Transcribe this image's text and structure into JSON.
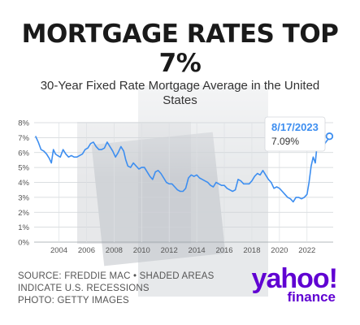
{
  "header": {
    "title_line1": "MORTGAGE RATES TOP",
    "title_line2": "7%",
    "subtitle_line1": "30-Year Fixed Rate Mortgage Average in the United",
    "subtitle_line2": "States"
  },
  "footer": {
    "source_line1": "SOURCE: FREDDIE MAC • SHADED AREAS",
    "source_line2": "INDICATE U.S. RECESSIONS",
    "source_line3": "PHOTO: GETTY IMAGES"
  },
  "brand": {
    "logo_text": "yahoo!",
    "sub_text": "finance",
    "color": "#6001d2"
  },
  "chart_data": {
    "type": "line",
    "xlim": [
      2002.2,
      2023.9
    ],
    "ylim": [
      0,
      8
    ],
    "x_ticks": [
      2004,
      2006,
      2008,
      2010,
      2012,
      2014,
      2016,
      2018,
      2020,
      2022
    ],
    "x_tick_labels": [
      "2004",
      "2006",
      "2008",
      "2010",
      "2012",
      "2014",
      "2016",
      "2018",
      "2020",
      "2022"
    ],
    "y_ticks": [
      0,
      1,
      2,
      3,
      4,
      5,
      6,
      7,
      8
    ],
    "y_tick_labels": [
      "0%",
      "1%",
      "2%",
      "3%",
      "4%",
      "5%",
      "6%",
      "7%",
      "8%"
    ],
    "grid": true,
    "line_color": "#3d8ef0",
    "series": [
      {
        "x": [
          2002.3,
          2002.5,
          2002.7,
          2002.9,
          2003.1,
          2003.3,
          2003.45,
          2003.6,
          2003.75,
          2003.9,
          2004.1,
          2004.3,
          2004.5,
          2004.7,
          2004.9,
          2005.1,
          2005.3,
          2005.5,
          2005.7,
          2005.9,
          2006.1,
          2006.3,
          2006.5,
          2006.7,
          2006.9,
          2007.1,
          2007.3,
          2007.5,
          2007.7,
          2007.9,
          2008.1,
          2008.3,
          2008.5,
          2008.7,
          2008.85,
          2009.0,
          2009.2,
          2009.4,
          2009.6,
          2009.8,
          2010.0,
          2010.2,
          2010.4,
          2010.6,
          2010.8,
          2011.0,
          2011.2,
          2011.4,
          2011.6,
          2011.8,
          2012.0,
          2012.2,
          2012.4,
          2012.6,
          2012.8,
          2013.0,
          2013.2,
          2013.4,
          2013.6,
          2013.8,
          2014.0,
          2014.2,
          2014.4,
          2014.6,
          2014.8,
          2015.0,
          2015.2,
          2015.4,
          2015.6,
          2015.8,
          2016.0,
          2016.2,
          2016.4,
          2016.6,
          2016.8,
          2017.0,
          2017.2,
          2017.4,
          2017.6,
          2017.8,
          2018.0,
          2018.2,
          2018.4,
          2018.6,
          2018.8,
          2019.0,
          2019.2,
          2019.4,
          2019.6,
          2019.8,
          2020.0,
          2020.2,
          2020.4,
          2020.6,
          2020.8,
          2021.0,
          2021.2,
          2021.4,
          2021.6,
          2021.8,
          2022.0,
          2022.15,
          2022.3,
          2022.45,
          2022.6,
          2022.75,
          2022.85,
          2023.0,
          2023.15,
          2023.3,
          2023.45,
          2023.55,
          2023.63
        ],
        "y": [
          7.1,
          6.7,
          6.2,
          6.1,
          5.9,
          5.6,
          5.3,
          6.2,
          5.9,
          5.8,
          5.7,
          6.2,
          5.9,
          5.7,
          5.8,
          5.7,
          5.7,
          5.8,
          5.9,
          6.2,
          6.3,
          6.6,
          6.7,
          6.4,
          6.2,
          6.2,
          6.3,
          6.7,
          6.4,
          6.1,
          5.7,
          6.0,
          6.4,
          6.1,
          5.5,
          5.1,
          5.0,
          5.3,
          5.1,
          4.9,
          5.0,
          5.0,
          4.7,
          4.4,
          4.2,
          4.7,
          4.8,
          4.6,
          4.3,
          4.0,
          3.9,
          3.9,
          3.7,
          3.5,
          3.4,
          3.4,
          3.6,
          4.3,
          4.5,
          4.4,
          4.5,
          4.3,
          4.2,
          4.1,
          4.0,
          3.8,
          3.7,
          4.0,
          3.9,
          3.8,
          3.8,
          3.6,
          3.5,
          3.4,
          3.5,
          4.2,
          4.1,
          3.9,
          3.9,
          3.9,
          4.1,
          4.4,
          4.6,
          4.5,
          4.8,
          4.5,
          4.2,
          4.0,
          3.6,
          3.7,
          3.6,
          3.4,
          3.2,
          3.0,
          2.9,
          2.7,
          3.0,
          3.0,
          2.9,
          3.0,
          3.2,
          4.0,
          5.1,
          5.7,
          5.3,
          6.7,
          7.0,
          6.4,
          6.2,
          6.6,
          6.8,
          6.9,
          7.1
        ]
      }
    ],
    "callout": {
      "date": "8/17/2023",
      "value": "7.09%",
      "x": 2023.63,
      "y": 7.09
    }
  }
}
